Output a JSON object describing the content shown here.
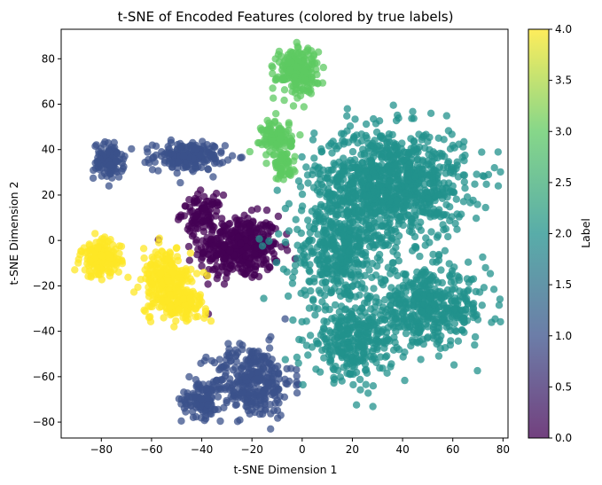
{
  "chart_data": {
    "type": "scatter",
    "title": "t-SNE of Encoded Features (colored by true labels)",
    "xlabel": "t-SNE Dimension 1",
    "ylabel": "t-SNE Dimension 2",
    "xlim": [
      -96,
      82
    ],
    "ylim": [
      -87,
      93
    ],
    "xticks": [
      -80,
      -60,
      -40,
      -20,
      0,
      20,
      40,
      60,
      80
    ],
    "yticks": [
      -80,
      -60,
      -40,
      -20,
      0,
      20,
      40,
      60,
      80
    ],
    "grid": false,
    "point_alpha": 0.75,
    "colorbar": {
      "label": "Label",
      "min": 0.0,
      "max": 4.0,
      "ticks": [
        "0.0",
        "0.5",
        "1.0",
        "1.5",
        "2.0",
        "2.5",
        "3.0",
        "3.5",
        "4.0"
      ],
      "colors": [
        "#440154",
        "#3b528b",
        "#21918c",
        "#5ec962",
        "#fde725"
      ]
    },
    "clusters": [
      {
        "label": 0,
        "color": "#440154",
        "center": [
          -25,
          -3
        ],
        "spread": [
          8,
          7
        ],
        "n": 380
      },
      {
        "label": 0,
        "color": "#440154",
        "center": [
          -40,
          12
        ],
        "spread": [
          4,
          4
        ],
        "n": 90
      },
      {
        "label": 1,
        "color": "#3b528b",
        "center": [
          -77,
          35
        ],
        "spread": [
          3,
          4
        ],
        "n": 110
      },
      {
        "label": 1,
        "color": "#3b528b",
        "center": [
          -45,
          37
        ],
        "spread": [
          7,
          3
        ],
        "n": 200
      },
      {
        "label": 1,
        "color": "#3b528b",
        "center": [
          -20,
          -62
        ],
        "spread": [
          8,
          8
        ],
        "n": 330
      },
      {
        "label": 1,
        "color": "#3b528b",
        "center": [
          -40,
          -70
        ],
        "spread": [
          4,
          4
        ],
        "n": 100
      },
      {
        "label": 2,
        "color": "#21918c",
        "center": [
          35,
          25
        ],
        "spread": [
          15,
          12
        ],
        "n": 1000
      },
      {
        "label": 2,
        "color": "#21918c",
        "center": [
          15,
          -5
        ],
        "spread": [
          10,
          12
        ],
        "n": 400
      },
      {
        "label": 2,
        "color": "#21918c",
        "center": [
          50,
          -30
        ],
        "spread": [
          12,
          8
        ],
        "n": 450
      },
      {
        "label": 2,
        "color": "#21918c",
        "center": [
          20,
          -45
        ],
        "spread": [
          8,
          8
        ],
        "n": 300
      },
      {
        "label": 3,
        "color": "#5ec962",
        "center": [
          -2,
          75
        ],
        "spread": [
          4,
          5
        ],
        "n": 220
      },
      {
        "label": 3,
        "color": "#5ec962",
        "center": [
          -10,
          45
        ],
        "spread": [
          3,
          4
        ],
        "n": 120
      },
      {
        "label": 3,
        "color": "#5ec962",
        "center": [
          -7,
          32
        ],
        "spread": [
          2,
          3
        ],
        "n": 50
      },
      {
        "label": 4,
        "color": "#fde725",
        "center": [
          -80,
          -8
        ],
        "spread": [
          4,
          4
        ],
        "n": 160
      },
      {
        "label": 4,
        "color": "#fde725",
        "center": [
          -54,
          -18
        ],
        "spread": [
          5,
          7
        ],
        "n": 240
      },
      {
        "label": 4,
        "color": "#fde725",
        "center": [
          -48,
          -28
        ],
        "spread": [
          5,
          3
        ],
        "n": 120
      }
    ]
  }
}
